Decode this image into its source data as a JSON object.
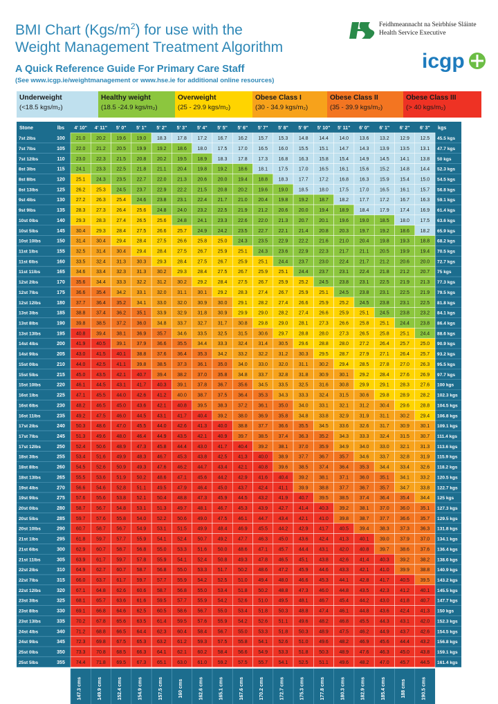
{
  "header": {
    "title_line1": "BMI Chart (Kgs/m",
    "title_sup": "2",
    "title_line1_end": ") for use with the",
    "title_line2": "Weight Management Treatment Algorithm",
    "subtitle": "A Quick Reference Guide For Primary Care Staff",
    "see_note": "(See www.icgp.ie/weightmanagement or www.hse.ie for additional online resources)"
  },
  "logos": {
    "hse_line1": "Feidhmeannacht na Seirbhíse Sláinte",
    "hse_line2": "Health Service Executive",
    "icgp_text": "icgp"
  },
  "legend": [
    {
      "name": "Underweight",
      "range": "(<18.5 kgs/m₂)",
      "color": "#bfe0ee"
    },
    {
      "name": "Healthy weight",
      "range": "(18.5 -24.9 kgs/m₂)",
      "color": "#8cc63e"
    },
    {
      "name": "Overweight",
      "range": "(25 - 29.9 kgs/m₂)",
      "color": "#ffd400"
    },
    {
      "name": "Obese Class I",
      "range": "(30 - 34.9 kgs/m₂)",
      "color": "#f7a21b"
    },
    {
      "name": "Obese Class II",
      "range": "(35 - 39.9 kgs/m₂)",
      "color": "#f37521"
    },
    {
      "name": "Obese Class III",
      "range": "(> 40 kgs/m₂)",
      "color": "#ee3224"
    }
  ],
  "colors": {
    "header_bg": "#1c6d8e",
    "underweight": "#bfe0ee",
    "healthy": "#8cc63e",
    "overweight": "#ffd400",
    "obese1": "#f7a21b",
    "obese2": "#f37521",
    "obese3": "#ee3224"
  },
  "chart_data": {
    "type": "heatmap",
    "corner_labels": {
      "stone": "Stone",
      "lbs": "lbs",
      "kgs": "kgs"
    },
    "height_columns": [
      "4' 10\"",
      "4' 11\"",
      "5' 0\"",
      "5' 1\"",
      "5' 2\"",
      "5' 3\"",
      "5' 4\"",
      "5' 5\"",
      "5' 6\"",
      "5' 7\"",
      "5' 8\"",
      "5' 9\"",
      "5' 10\"",
      "5' 11\"",
      "6' 0\"",
      "6' 1\"",
      "6' 2\"",
      "6' 3\""
    ],
    "height_cm_labels": [
      "147.3 cms",
      "149.9 cms",
      "152.4 cms",
      "154.9 cms",
      "157.5 cms",
      "160 cms",
      "162.6 cms",
      "165.1 cms",
      "167.6 cms",
      "170.2 cms",
      "172.7 cms",
      "175.3 cms",
      "177.8 cms",
      "180.3 cms",
      "182.9 cms",
      "185.4 cms",
      "188 cms",
      "190.5 cms"
    ],
    "heights_m": [
      1.473,
      1.499,
      1.524,
      1.549,
      1.575,
      1.6,
      1.626,
      1.651,
      1.676,
      1.702,
      1.727,
      1.753,
      1.778,
      1.803,
      1.829,
      1.854,
      1.88,
      1.905
    ],
    "weight_rows": [
      {
        "stone": "7st 2lbs",
        "lbs": 100,
        "kgs": "45.5 kgs",
        "kg": 45.5
      },
      {
        "stone": "7st 7lbs",
        "lbs": 105,
        "kgs": "47.7 kgs",
        "kg": 47.7
      },
      {
        "stone": "7st 12lbs",
        "lbs": 110,
        "kgs": "50 kgs",
        "kg": 50.0
      },
      {
        "stone": "8st 3lbs",
        "lbs": 115,
        "kgs": "52.3 kgs",
        "kg": 52.3
      },
      {
        "stone": "8st 8lbs",
        "lbs": 120,
        "kgs": "54.5 kgs",
        "kg": 54.5
      },
      {
        "stone": "8st 13lbs",
        "lbs": 125,
        "kgs": "56.8 kgs",
        "kg": 56.8
      },
      {
        "stone": "9st 4lbs",
        "lbs": 130,
        "kgs": "59.1 kgs",
        "kg": 59.1
      },
      {
        "stone": "9st 9lbs",
        "lbs": 135,
        "kgs": "61.4 kgs",
        "kg": 61.4
      },
      {
        "stone": "10st 0lbs",
        "lbs": 140,
        "kgs": "63.6 kgs",
        "kg": 63.6
      },
      {
        "stone": "10st 5lbs",
        "lbs": 145,
        "kgs": "65.9 kgs",
        "kg": 65.9
      },
      {
        "stone": "10st 10lbs",
        "lbs": 150,
        "kgs": "68.2 kgs",
        "kg": 68.2
      },
      {
        "stone": "11st 1lbs",
        "lbs": 155,
        "kgs": "70.5 kgs",
        "kg": 70.5
      },
      {
        "stone": "11st 6lbs",
        "lbs": 160,
        "kgs": "72.7 kgs",
        "kg": 72.7
      },
      {
        "stone": "11st 11lbs",
        "lbs": 165,
        "kgs": "75 kgs",
        "kg": 75.0
      },
      {
        "stone": "12st 2lbs",
        "lbs": 170,
        "kgs": "77.3 kgs",
        "kg": 77.3
      },
      {
        "stone": "12st 7lbs",
        "lbs": 175,
        "kgs": "79.5 kgs",
        "kg": 79.5
      },
      {
        "stone": "12st 12lbs",
        "lbs": 180,
        "kgs": "81.8 kgs",
        "kg": 81.8
      },
      {
        "stone": "13st 3lbs",
        "lbs": 185,
        "kgs": "84.1 kgs",
        "kg": 84.1
      },
      {
        "stone": "13st 8lbs",
        "lbs": 190,
        "kgs": "86.4 kgs",
        "kg": 86.4
      },
      {
        "stone": "13st 13lbs",
        "lbs": 195,
        "kgs": "88.6 kgs",
        "kg": 88.6
      },
      {
        "stone": "14st 4lbs",
        "lbs": 200,
        "kgs": "90.9 kgs",
        "kg": 90.9
      },
      {
        "stone": "14st 9lbs",
        "lbs": 205,
        "kgs": "93.2 kgs",
        "kg": 93.2
      },
      {
        "stone": "15st 0lbs",
        "lbs": 210,
        "kgs": "95.5 kgs",
        "kg": 95.5
      },
      {
        "stone": "15st 5lbs",
        "lbs": 215,
        "kgs": "97.7 kgs",
        "kg": 97.7
      },
      {
        "stone": "15st 10lbs",
        "lbs": 220,
        "kgs": "100 kgs",
        "kg": 100.0
      },
      {
        "stone": "16st 1lbs",
        "lbs": 225,
        "kgs": "102.3 kgs",
        "kg": 102.3
      },
      {
        "stone": "16st 6lbs",
        "lbs": 230,
        "kgs": "104.5 kgs",
        "kg": 104.5
      },
      {
        "stone": "16st 11lbs",
        "lbs": 235,
        "kgs": "106.8 kgs",
        "kg": 106.8
      },
      {
        "stone": "17st 2lbs",
        "lbs": 240,
        "kgs": "109.1 kgs",
        "kg": 109.1
      },
      {
        "stone": "17st 7lbs",
        "lbs": 245,
        "kgs": "111.4 kgs",
        "kg": 111.4
      },
      {
        "stone": "17st 12lbs",
        "lbs": 250,
        "kgs": "113.6 kgs",
        "kg": 113.6
      },
      {
        "stone": "18st 3lbs",
        "lbs": 255,
        "kgs": "115.9 kgs",
        "kg": 115.9
      },
      {
        "stone": "18st 8lbs",
        "lbs": 260,
        "kgs": "118.2 kgs",
        "kg": 118.2
      },
      {
        "stone": "18st 13lbs",
        "lbs": 265,
        "kgs": "120.5 kgs",
        "kg": 120.5
      },
      {
        "stone": "19st 4lbs",
        "lbs": 270,
        "kgs": "122.7 kgs",
        "kg": 122.7
      },
      {
        "stone": "19st 9lbs",
        "lbs": 275,
        "kgs": "125 kgs",
        "kg": 125.0
      },
      {
        "stone": "20st 0lbs",
        "lbs": 280,
        "kgs": "127.3 kgs",
        "kg": 127.3
      },
      {
        "stone": "20st 5lbs",
        "lbs": 285,
        "kgs": "129.5 kgs",
        "kg": 129.5
      },
      {
        "stone": "20st 10lbs",
        "lbs": 290,
        "kgs": "131.8 kgs",
        "kg": 131.8
      },
      {
        "stone": "21st 1lbs",
        "lbs": 295,
        "kgs": "134.1 kgs",
        "kg": 134.1
      },
      {
        "stone": "21st 6lbs",
        "lbs": 300,
        "kgs": "136.4 kgs",
        "kg": 136.4
      },
      {
        "stone": "21st 11lbs",
        "lbs": 305,
        "kgs": "138.6 kgs",
        "kg": 138.6
      },
      {
        "stone": "22st 2lbs",
        "lbs": 310,
        "kgs": "140.9 kgs",
        "kg": 140.9
      },
      {
        "stone": "22st 7lbs",
        "lbs": 315,
        "kgs": "143.2 kgs",
        "kg": 143.2
      },
      {
        "stone": "22st 12lbs",
        "lbs": 320,
        "kgs": "145.5 kgs",
        "kg": 145.5
      },
      {
        "stone": "23st 3lbs",
        "lbs": 325,
        "kgs": "147.7 kgs",
        "kg": 147.7
      },
      {
        "stone": "23st 8lbs",
        "lbs": 330,
        "kgs": "150 kgs",
        "kg": 150.0
      },
      {
        "stone": "23st 13lbs",
        "lbs": 335,
        "kgs": "152.3 kgs",
        "kg": 152.3
      },
      {
        "stone": "24st 4lbs",
        "lbs": 340,
        "kgs": "154.5 kgs",
        "kg": 154.5
      },
      {
        "stone": "24st 9lbs",
        "lbs": 345,
        "kgs": "156.8 kgs",
        "kg": 156.8
      },
      {
        "stone": "25st 0lbs",
        "lbs": 350,
        "kgs": "159.1 kgs",
        "kg": 159.1
      },
      {
        "stone": "25st 5lbs",
        "lbs": 355,
        "kgs": "161.4 kgs",
        "kg": 161.4
      }
    ],
    "cell_value": "BMI = kg / m² rounded to 1 decimal place",
    "category_thresholds": [
      18.5,
      25,
      30,
      35,
      40
    ]
  }
}
